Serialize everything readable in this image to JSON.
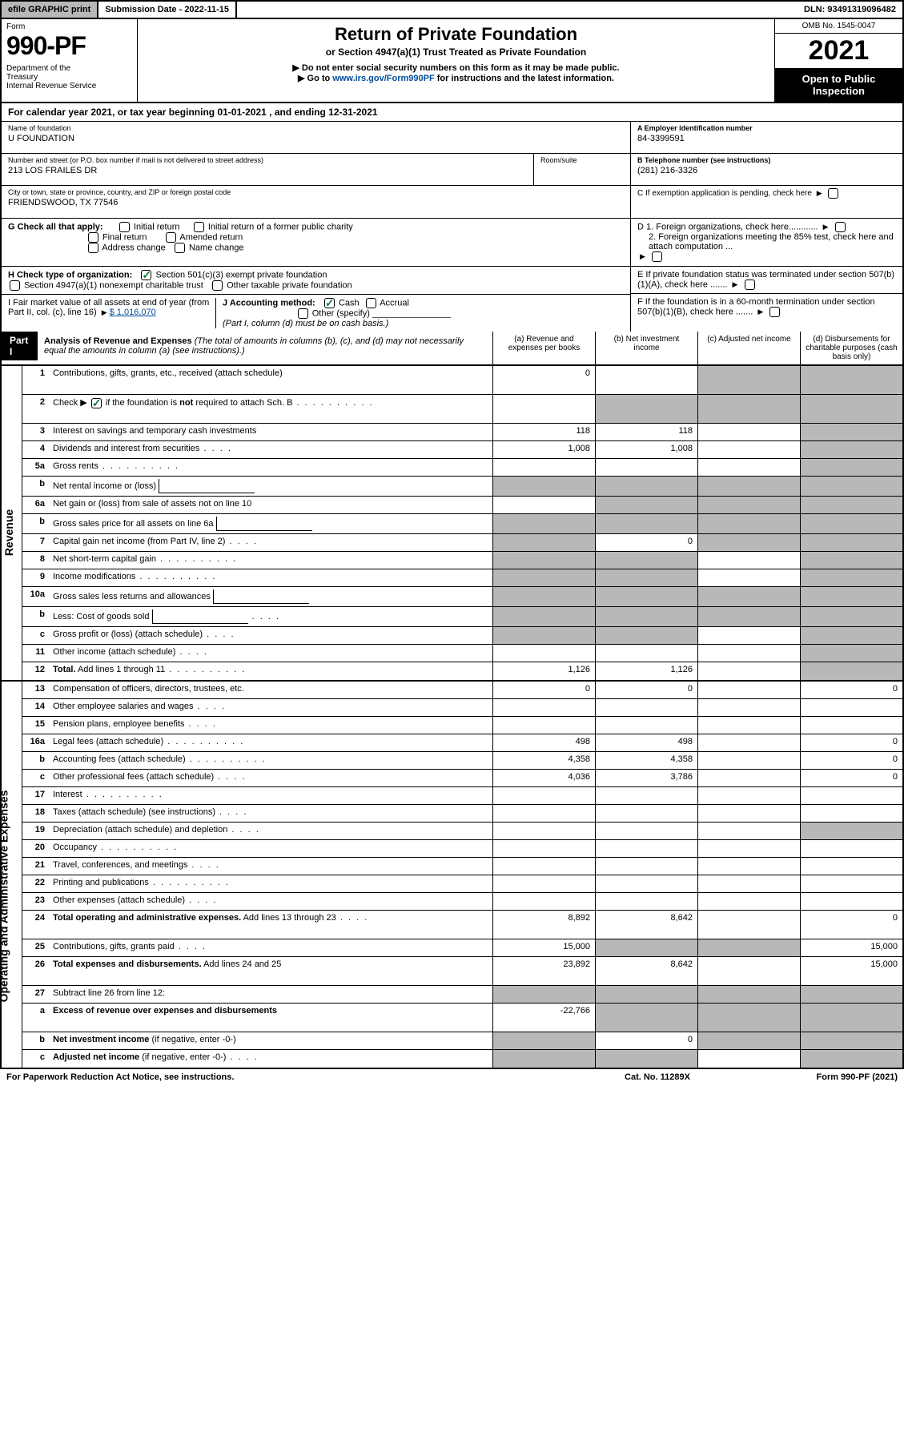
{
  "topbar": {
    "efile_prefix": "efile",
    "efile_rest": " GRAPHIC print",
    "submission": "Submission Date - 2022-11-15",
    "dln": "DLN: 93491319096482"
  },
  "header": {
    "form_label": "Form",
    "form_number": "990-PF",
    "dept": "Department of the Treasury\nInternal Revenue Service",
    "title": "Return of Private Foundation",
    "subtitle": "or Section 4947(a)(1) Trust Treated as Private Foundation",
    "note1": "▶ Do not enter social security numbers on this form as it may be made public.",
    "note2_pre": "▶ Go to ",
    "note2_link": "www.irs.gov/Form990PF",
    "note2_post": " for instructions and the latest information.",
    "omb": "OMB No. 1545-0047",
    "year": "2021",
    "open": "Open to Public Inspection"
  },
  "calyear": "For calendar year 2021, or tax year beginning 01-01-2021             , and ending 12-31-2021",
  "foundation": {
    "name_label": "Name of foundation",
    "name": "U FOUNDATION",
    "addr_label": "Number and street (or P.O. box number if mail is not delivered to street address)",
    "addr": "213 LOS FRAILES DR",
    "room_label": "Room/suite",
    "city_label": "City or town, state or province, country, and ZIP or foreign postal code",
    "city": "FRIENDSWOOD, TX  77546",
    "ein_label": "A Employer identification number",
    "ein": "84-3399591",
    "phone_label": "B Telephone number (see instructions)",
    "phone": "(281) 216-3326",
    "c_label": "C If exemption application is pending, check here"
  },
  "checks": {
    "g_label": "G Check all that apply:",
    "g_opts": [
      "Initial return",
      "Initial return of a former public charity",
      "Final return",
      "Amended return",
      "Address change",
      "Name change"
    ],
    "h_label": "H Check type of organization:",
    "h1": "Section 501(c)(3) exempt private foundation",
    "h2": "Section 4947(a)(1) nonexempt charitable trust",
    "h3": "Other taxable private foundation",
    "i_label": "I Fair market value of all assets at end of year (from Part II, col. (c), line 16) ",
    "i_val": "$  1,016,070",
    "j_label": "J Accounting method:",
    "j_cash": "Cash",
    "j_accrual": "Accrual",
    "j_other": "Other (specify)",
    "j_note": "(Part I, column (d) must be on cash basis.)",
    "d1": "D 1. Foreign organizations, check here............",
    "d2": "2. Foreign organizations meeting the 85% test, check here and attach computation ...",
    "e": "E If private foundation status was terminated under section 507(b)(1)(A), check here .......",
    "f": "F If the foundation is in a 60-month termination under section 507(b)(1)(B), check here ......."
  },
  "part1": {
    "label": "Part I",
    "title": "Analysis of Revenue and Expenses",
    "title_note": " (The total of amounts in columns (b), (c), and (d) may not necessarily equal the amounts in column (a) (see instructions).)",
    "col_a": "(a)   Revenue and expenses per books",
    "col_b": "(b)   Net investment income",
    "col_c": "(c)   Adjusted net income",
    "col_d": "(d)   Disbursements for charitable purposes (cash basis only)"
  },
  "sidelabels": {
    "revenue": "Revenue",
    "expenses": "Operating and Administrative Expenses"
  },
  "rows": [
    {
      "n": "1",
      "d": "Contributions, gifts, grants, etc., received (attach schedule)",
      "a": "0",
      "b": "",
      "c": "s",
      "dd": "s",
      "tall": true
    },
    {
      "n": "2",
      "d": "Check ▶ ☑ if the foundation is <b>not</b> required to attach Sch. B",
      "dots": true,
      "a": "",
      "b": "s",
      "c": "s",
      "dd": "s",
      "tall": true,
      "checked": true
    },
    {
      "n": "3",
      "d": "Interest on savings and temporary cash investments",
      "a": "118",
      "b": "118",
      "c": "",
      "dd": "s"
    },
    {
      "n": "4",
      "d": "Dividends and interest from securities",
      "dots": "short",
      "a": "1,008",
      "b": "1,008",
      "c": "",
      "dd": "s"
    },
    {
      "n": "5a",
      "d": "Gross rents",
      "dots": true,
      "a": "",
      "b": "",
      "c": "",
      "dd": "s"
    },
    {
      "n": "b",
      "d": "Net rental income or (loss)",
      "half": true,
      "a": "s",
      "b": "s",
      "c": "s",
      "dd": "s"
    },
    {
      "n": "6a",
      "d": "Net gain or (loss) from sale of assets not on line 10",
      "a": "",
      "b": "s",
      "c": "s",
      "dd": "s"
    },
    {
      "n": "b",
      "d": "Gross sales price for all assets on line 6a",
      "half": true,
      "a": "s",
      "b": "s",
      "c": "s",
      "dd": "s"
    },
    {
      "n": "7",
      "d": "Capital gain net income (from Part IV, line 2)",
      "dots": "short",
      "a": "s",
      "b": "0",
      "c": "s",
      "dd": "s"
    },
    {
      "n": "8",
      "d": "Net short-term capital gain",
      "dots": true,
      "a": "s",
      "b": "s",
      "c": "",
      "dd": "s"
    },
    {
      "n": "9",
      "d": "Income modifications",
      "dots": true,
      "a": "s",
      "b": "s",
      "c": "",
      "dd": "s"
    },
    {
      "n": "10a",
      "d": "Gross sales less returns and allowances",
      "half": true,
      "a": "s",
      "b": "s",
      "c": "s",
      "dd": "s"
    },
    {
      "n": "b",
      "d": "Less: Cost of goods sold",
      "dots": "short",
      "half": true,
      "a": "s",
      "b": "s",
      "c": "s",
      "dd": "s"
    },
    {
      "n": "c",
      "d": "Gross profit or (loss) (attach schedule)",
      "dots": "short",
      "a": "s",
      "b": "s",
      "c": "",
      "dd": "s"
    },
    {
      "n": "11",
      "d": "Other income (attach schedule)",
      "dots": "short",
      "a": "",
      "b": "",
      "c": "",
      "dd": "s"
    },
    {
      "n": "12",
      "d": "<b>Total.</b> Add lines 1 through 11",
      "dots": true,
      "a": "1,126",
      "b": "1,126",
      "c": "",
      "dd": "s"
    }
  ],
  "exp_rows": [
    {
      "n": "13",
      "d": "Compensation of officers, directors, trustees, etc.",
      "a": "0",
      "b": "0",
      "c": "",
      "dd": "0"
    },
    {
      "n": "14",
      "d": "Other employee salaries and wages",
      "dots": "short",
      "a": "",
      "b": "",
      "c": "",
      "dd": ""
    },
    {
      "n": "15",
      "d": "Pension plans, employee benefits",
      "dots": "short",
      "a": "",
      "b": "",
      "c": "",
      "dd": ""
    },
    {
      "n": "16a",
      "d": "Legal fees (attach schedule)",
      "dots": true,
      "a": "498",
      "b": "498",
      "c": "",
      "dd": "0"
    },
    {
      "n": "b",
      "d": "Accounting fees (attach schedule)",
      "dots": true,
      "a": "4,358",
      "b": "4,358",
      "c": "",
      "dd": "0"
    },
    {
      "n": "c",
      "d": "Other professional fees (attach schedule)",
      "dots": "short",
      "a": "4,036",
      "b": "3,786",
      "c": "",
      "dd": "0"
    },
    {
      "n": "17",
      "d": "Interest",
      "dots": true,
      "a": "",
      "b": "",
      "c": "",
      "dd": ""
    },
    {
      "n": "18",
      "d": "Taxes (attach schedule) (see instructions)",
      "dots": "short",
      "a": "",
      "b": "",
      "c": "",
      "dd": ""
    },
    {
      "n": "19",
      "d": "Depreciation (attach schedule) and depletion",
      "dots": "short",
      "a": "",
      "b": "",
      "c": "",
      "dd": "s"
    },
    {
      "n": "20",
      "d": "Occupancy",
      "dots": true,
      "a": "",
      "b": "",
      "c": "",
      "dd": ""
    },
    {
      "n": "21",
      "d": "Travel, conferences, and meetings",
      "dots": "short",
      "a": "",
      "b": "",
      "c": "",
      "dd": ""
    },
    {
      "n": "22",
      "d": "Printing and publications",
      "dots": true,
      "a": "",
      "b": "",
      "c": "",
      "dd": ""
    },
    {
      "n": "23",
      "d": "Other expenses (attach schedule)",
      "dots": "short",
      "a": "",
      "b": "",
      "c": "",
      "dd": ""
    },
    {
      "n": "24",
      "d": "<b>Total operating and administrative expenses.</b> Add lines 13 through 23",
      "dots": "short",
      "a": "8,892",
      "b": "8,642",
      "c": "",
      "dd": "0",
      "tall": true
    },
    {
      "n": "25",
      "d": "Contributions, gifts, grants paid",
      "dots": "short",
      "a": "15,000",
      "b": "s",
      "c": "s",
      "dd": "15,000"
    },
    {
      "n": "26",
      "d": "<b>Total expenses and disbursements.</b> Add lines 24 and 25",
      "a": "23,892",
      "b": "8,642",
      "c": "",
      "dd": "15,000",
      "tall": true
    },
    {
      "n": "27",
      "d": "Subtract line 26 from line 12:",
      "a": "s",
      "b": "s",
      "c": "s",
      "dd": "s"
    },
    {
      "n": "a",
      "d": "<b>Excess of revenue over expenses and disbursements</b>",
      "a": "-22,766",
      "b": "s",
      "c": "s",
      "dd": "s",
      "tall": true
    },
    {
      "n": "b",
      "d": "<b>Net investment income</b> (if negative, enter -0-)",
      "a": "s",
      "b": "0",
      "c": "s",
      "dd": "s"
    },
    {
      "n": "c",
      "d": "<b>Adjusted net income</b> (if negative, enter -0-)",
      "dots": "short",
      "a": "s",
      "b": "s",
      "c": "",
      "dd": "s"
    }
  ],
  "footer": {
    "left": "For Paperwork Reduction Act Notice, see instructions.",
    "mid": "Cat. No. 11289X",
    "right": "Form 990-PF (2021)"
  }
}
